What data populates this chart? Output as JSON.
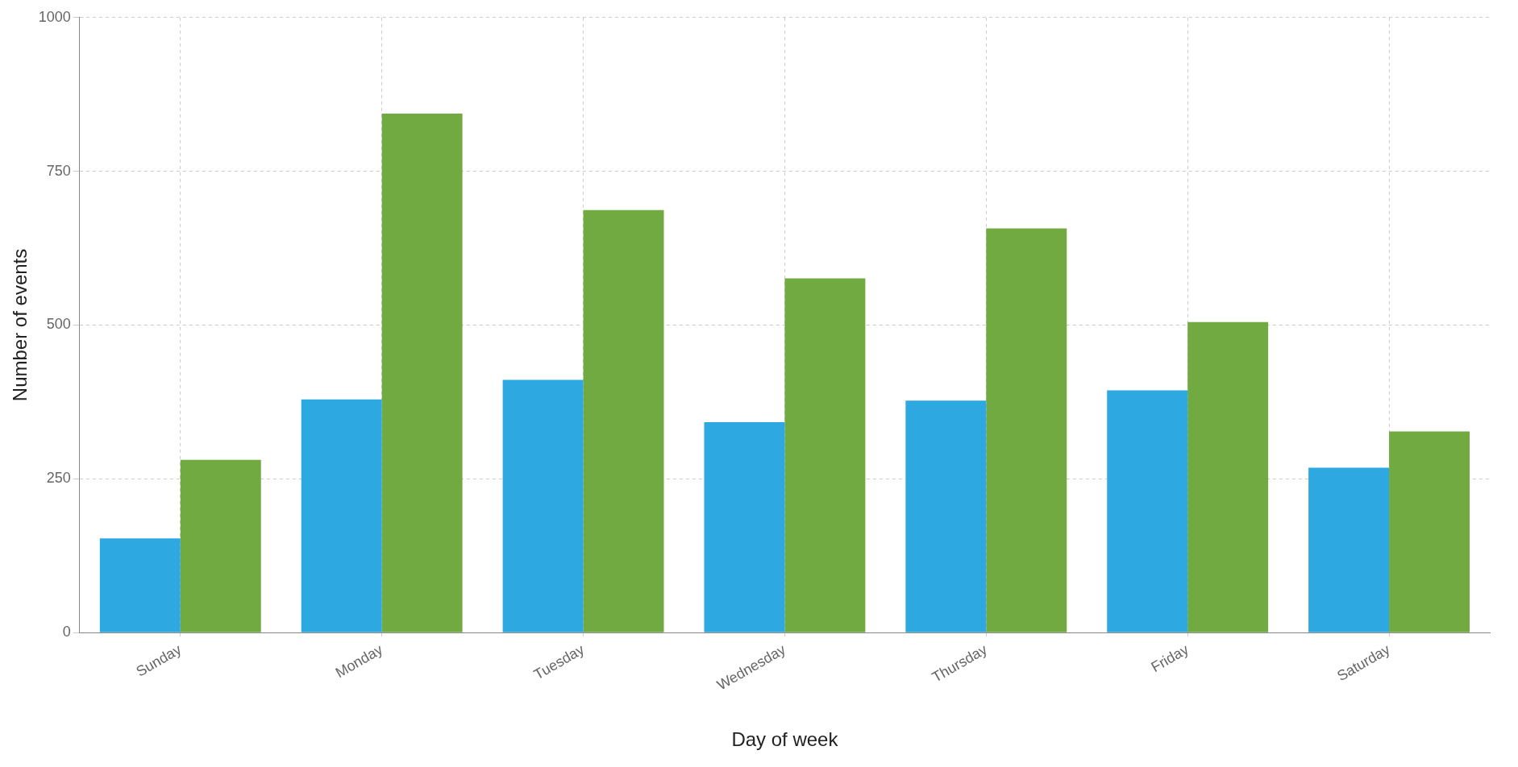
{
  "chart_data": {
    "type": "bar",
    "xlabel": "Day of week",
    "ylabel": "Number of events",
    "categories": [
      "Sunday",
      "Monday",
      "Tuesday",
      "Wednesday",
      "Thursday",
      "Friday",
      "Saturday"
    ],
    "series": [
      {
        "color": "#2ea8e0",
        "values": [
          153,
          379,
          411,
          342,
          377,
          394,
          268
        ]
      },
      {
        "color": "#72aa42",
        "values": [
          281,
          844,
          687,
          576,
          657,
          505,
          327
        ]
      }
    ],
    "ylim": [
      0,
      1000
    ],
    "yticks": [
      0,
      250,
      500,
      750,
      1000
    ],
    "grid": true,
    "legend": false
  }
}
